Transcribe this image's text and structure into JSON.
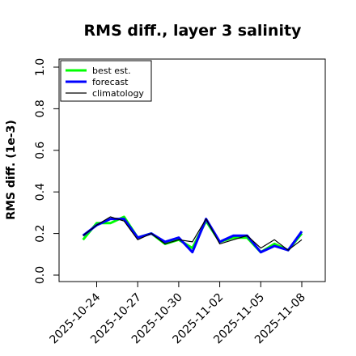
{
  "chart_data": {
    "type": "line",
    "title": "RMS diff., layer 3 salinity",
    "ylabel": "RMS diff. (1e-3)",
    "xlabel": "",
    "ylim": [
      0,
      1.0
    ],
    "yticks": [
      "0.0",
      "0.2",
      "0.4",
      "0.6",
      "0.8",
      "1.0"
    ],
    "xticks": [
      {
        "label": "2025-10-24",
        "date": "2025-10-24",
        "color": "#000000"
      },
      {
        "label": "2025-10-27",
        "date": "2025-10-27",
        "color": "#000000"
      },
      {
        "label": "2025-10-30",
        "date": "2025-10-30",
        "color": "#228b22"
      },
      {
        "label": "2025-11-02",
        "date": "2025-11-02",
        "color": "#000000"
      },
      {
        "label": "2025-11-05",
        "date": "2025-11-05",
        "color": "#000000"
      },
      {
        "label": "2025-11-08",
        "date": "2025-11-08",
        "color": "#000000"
      }
    ],
    "x": [
      "2025-10-23",
      "2025-10-24",
      "2025-10-25",
      "2025-10-26",
      "2025-10-27",
      "2025-10-28",
      "2025-10-29",
      "2025-10-30",
      "2025-10-31",
      "2025-11-01",
      "2025-11-02",
      "2025-11-03",
      "2025-11-04",
      "2025-11-05",
      "2025-11-06",
      "2025-11-07",
      "2025-11-08"
    ],
    "series": [
      {
        "name": "best est.",
        "color": "#00ff00",
        "width": 3,
        "values": [
          0.17,
          0.25,
          0.25,
          0.28,
          0.18,
          0.2,
          0.15,
          0.17,
          0.13,
          0.26,
          0.16,
          0.18,
          0.18,
          0.11,
          0.15,
          0.12,
          0.2
        ]
      },
      {
        "name": "forecast",
        "color": "#0000ff",
        "width": 3,
        "values": [
          0.19,
          0.24,
          0.27,
          0.27,
          0.18,
          0.2,
          0.16,
          0.18,
          0.11,
          0.27,
          0.16,
          0.19,
          0.19,
          0.11,
          0.14,
          0.12,
          0.21
        ]
      },
      {
        "name": "climatology",
        "color": "#000000",
        "width": 1.2,
        "values": [
          0.19,
          0.24,
          0.28,
          0.26,
          0.17,
          0.2,
          0.15,
          0.17,
          0.16,
          0.27,
          0.15,
          0.17,
          0.19,
          0.13,
          0.17,
          0.12,
          0.17
        ]
      }
    ],
    "legend_position": "top-left",
    "grid": false
  }
}
